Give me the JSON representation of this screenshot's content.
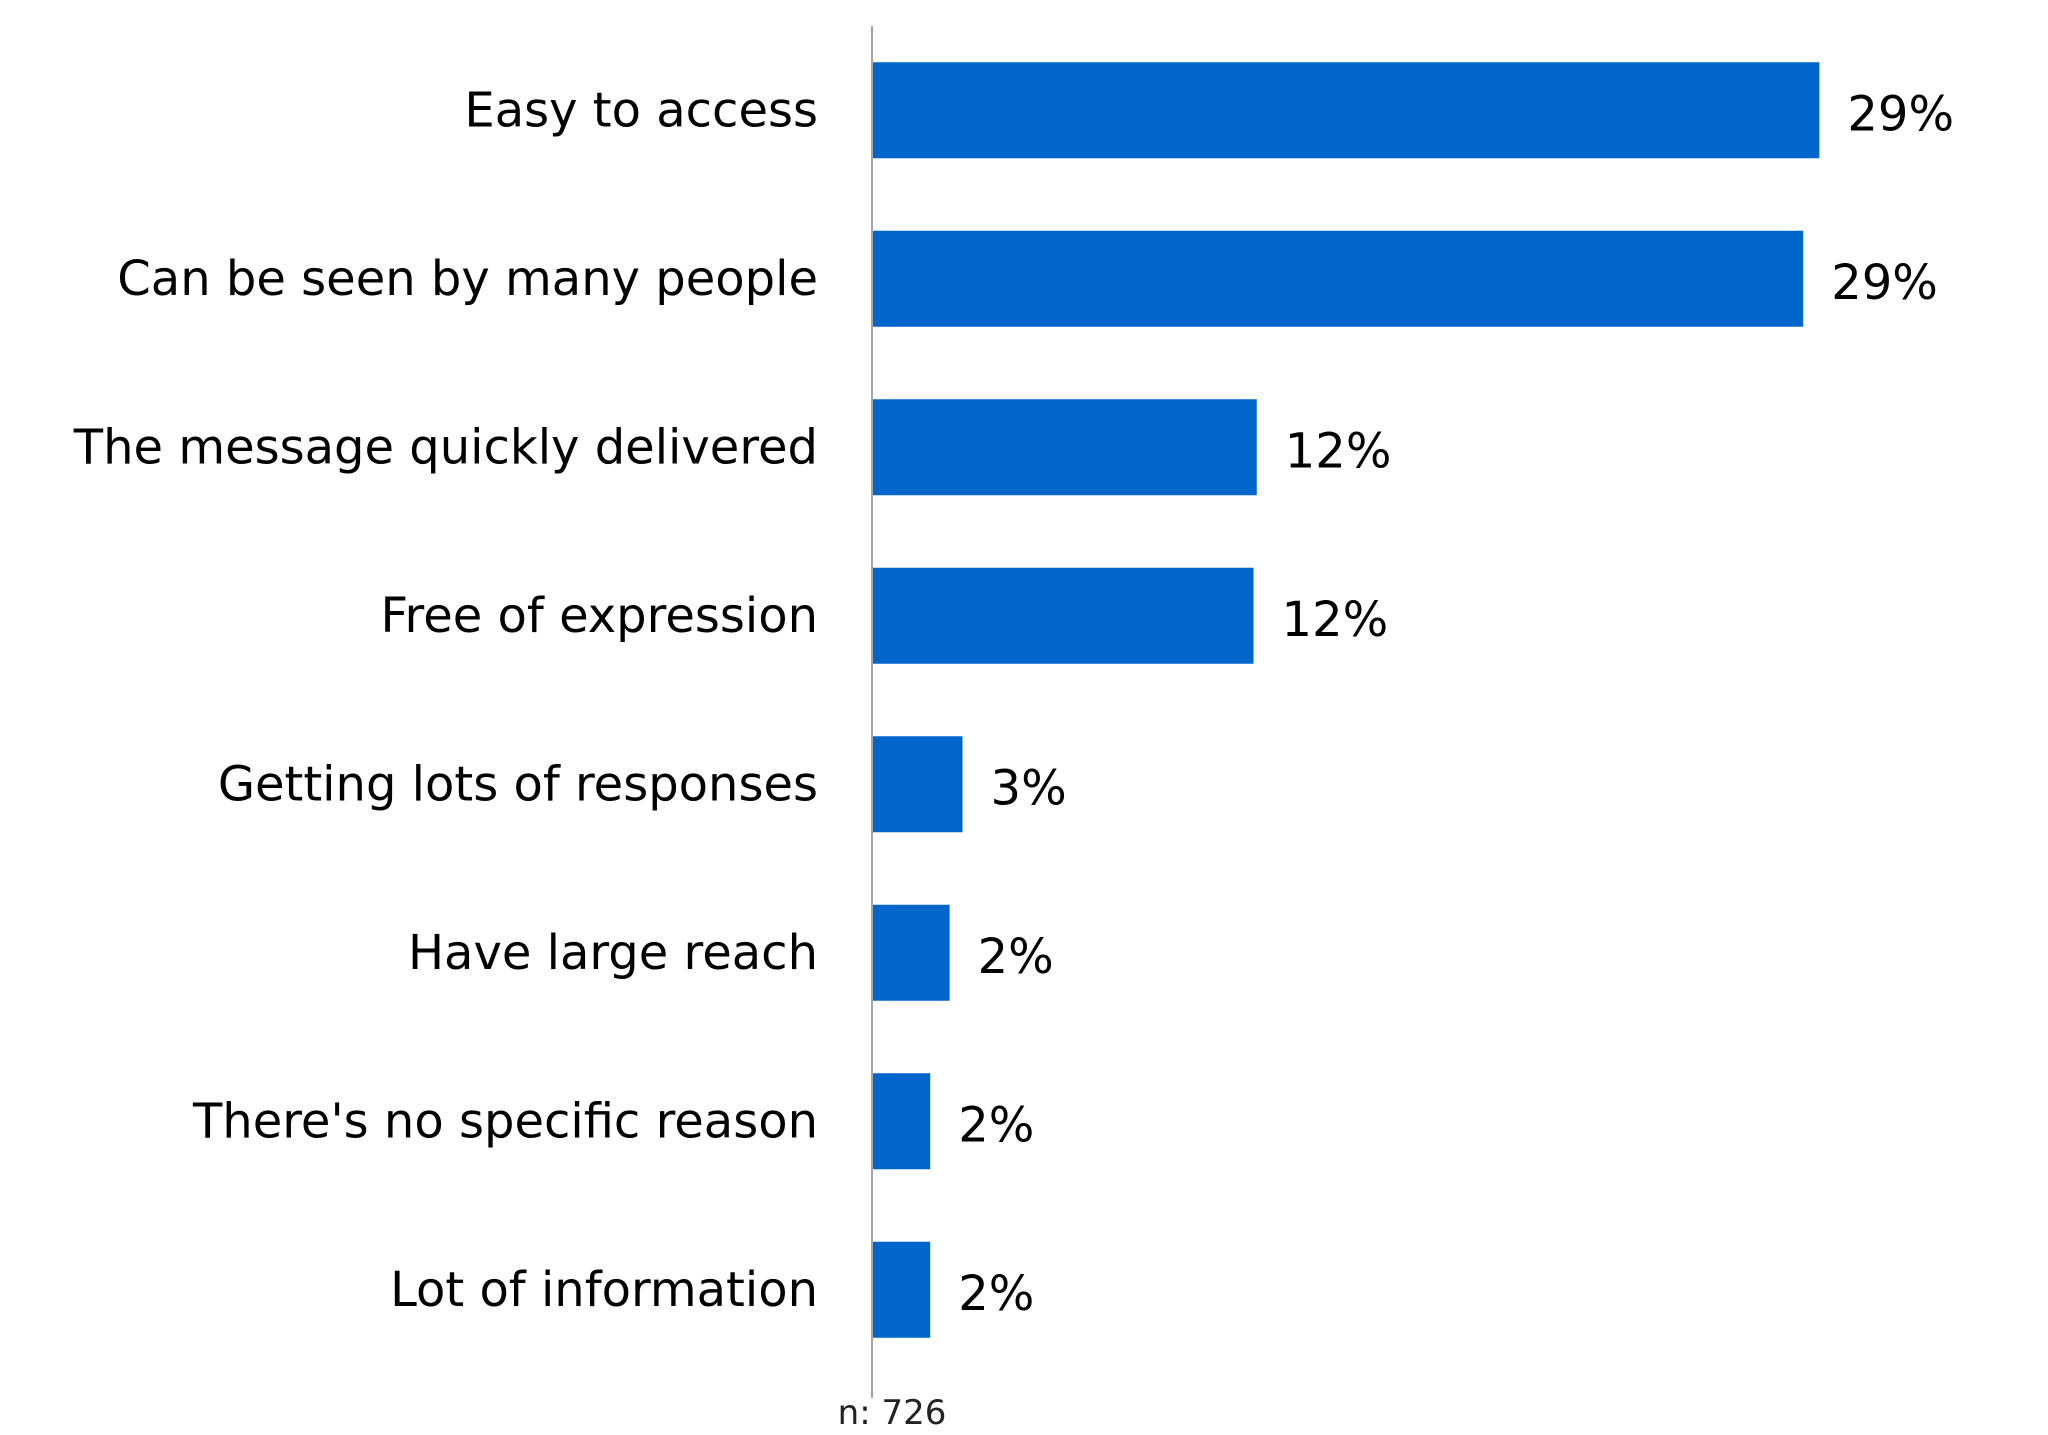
{
  "chart_data": {
    "type": "bar",
    "orientation": "horizontal",
    "categories": [
      "Easy to access",
      "Can be seen by many people",
      "The message quickly delivered",
      "Free of expression",
      "Getting lots of responses",
      "Have large reach",
      "There's no specific reason",
      "Lot of information"
    ],
    "values": [
      29.3,
      28.8,
      11.9,
      11.8,
      2.8,
      2.4,
      1.8,
      1.8
    ],
    "value_labels": [
      "29%",
      "29%",
      "12%",
      "12%",
      "3%",
      "2%",
      "2%",
      "2%"
    ],
    "xlim": [
      0,
      30
    ],
    "grid": false,
    "legend": "none",
    "bar_color": "#0066CC",
    "axis_color": "#A6A6A6",
    "footnote": "n: 726"
  }
}
